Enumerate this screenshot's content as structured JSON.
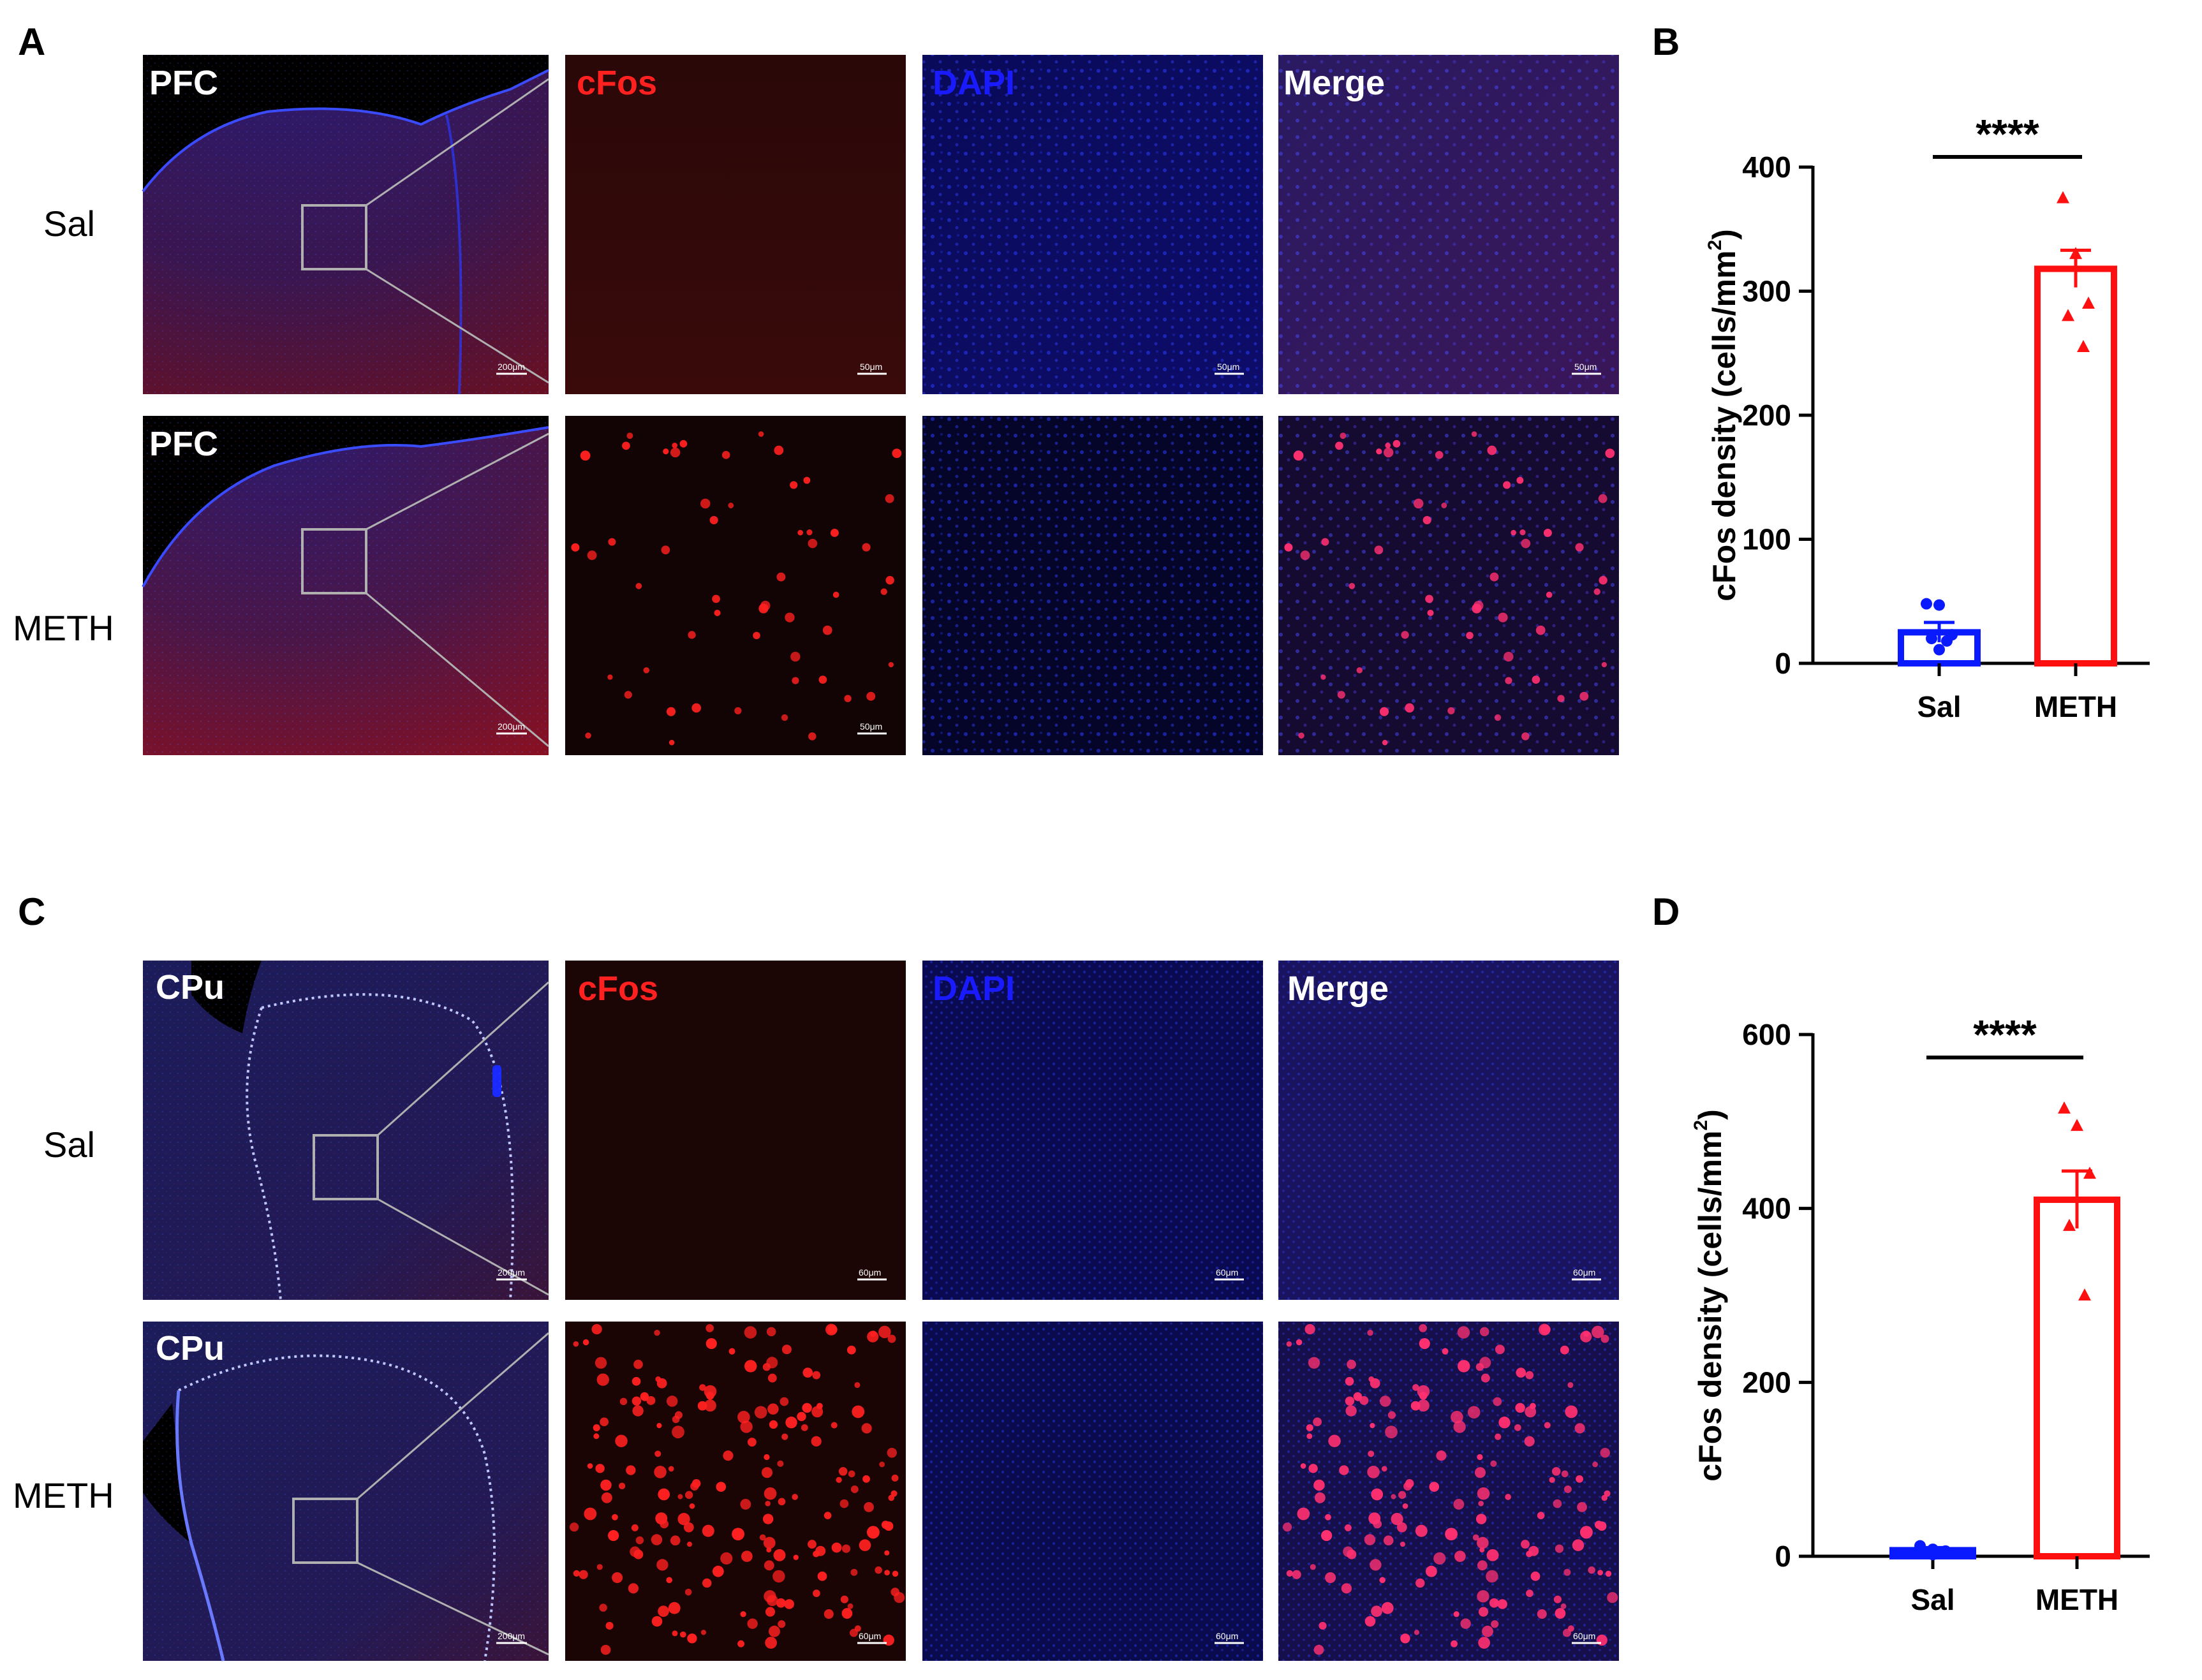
{
  "panels": {
    "A": {
      "letter": "A",
      "region_label": "PFC",
      "column_titles": {
        "cfos": "cFos",
        "dapi": "DAPI",
        "merge": "Merge"
      },
      "rows": [
        {
          "condition": "Sal",
          "overview_label": "PFC",
          "overview_scale": "200μm",
          "zoom_scale": "50μm"
        },
        {
          "condition": "METH",
          "overview_label": "PFC",
          "overview_scale": "200μm",
          "zoom_scale": "50μm"
        }
      ]
    },
    "C": {
      "letter": "C",
      "region_label": "CPu",
      "column_titles": {
        "cfos": "cFos",
        "dapi": "DAPI",
        "merge": "Merge"
      },
      "rows": [
        {
          "condition": "Sal",
          "overview_label": "CPu",
          "overview_scale": "200μm",
          "zoom_scale": "60μm"
        },
        {
          "condition": "METH",
          "overview_label": "CPu",
          "overview_scale": "200μm",
          "zoom_scale": "60μm"
        }
      ]
    }
  },
  "colors": {
    "cfos": "#ff2020",
    "dapi": "#1a1aff",
    "sal_bar": "#0a1aff",
    "meth_bar": "#ff1010",
    "merge_title": "#ffffff",
    "overview_title": "#ffffff"
  },
  "chart_data": [
    {
      "panel": "B",
      "type": "bar",
      "categories": [
        "Sal",
        "METH"
      ],
      "values": [
        25,
        318
      ],
      "errors": [
        8,
        15
      ],
      "points": [
        [
          48,
          47,
          23,
          20,
          18,
          11
        ],
        [
          375,
          330,
          290,
          280,
          255
        ]
      ],
      "marker": [
        "circle",
        "triangle"
      ],
      "ylabel": "cFos density (cells/mm",
      "ylabel_sup": "2",
      "ylabel_close": ")",
      "ylim": [
        0,
        400
      ],
      "yticks": [
        0,
        100,
        200,
        300,
        400
      ],
      "significance": "****",
      "colors": [
        "#0a1aff",
        "#ff1010"
      ]
    },
    {
      "panel": "D",
      "type": "bar",
      "categories": [
        "Sal",
        "METH"
      ],
      "values": [
        7,
        410
      ],
      "errors": [
        3,
        33
      ],
      "points": [
        [
          12,
          8,
          6,
          4,
          3,
          2
        ],
        [
          515,
          495,
          440,
          380,
          300
        ]
      ],
      "marker": [
        "circle",
        "triangle"
      ],
      "ylabel": "cFos density (cells/mm",
      "ylabel_sup": "2",
      "ylabel_close": ")",
      "ylim": [
        0,
        600
      ],
      "yticks": [
        0,
        200,
        400,
        600
      ],
      "significance": "****",
      "colors": [
        "#0a1aff",
        "#ff1010"
      ]
    }
  ],
  "chart_letters": [
    "B",
    "D"
  ]
}
